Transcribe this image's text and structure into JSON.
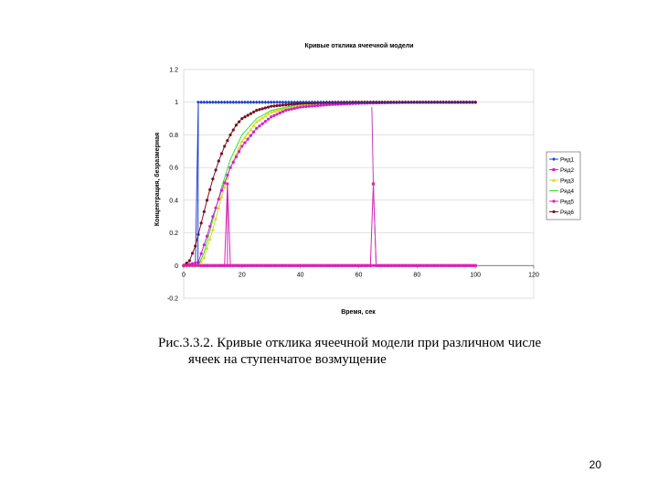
{
  "chart_data": {
    "type": "line",
    "title": "Кривые отклика ячеечной модели",
    "xlabel": "Время, сек",
    "ylabel": "Концентрация, безразмерная",
    "xlim": [
      0,
      120
    ],
    "ylim": [
      -0.2,
      1.2
    ],
    "xticks": [
      "0",
      "20",
      "40",
      "60",
      "80",
      "100",
      "120"
    ],
    "yticks": [
      "-0.2",
      "0",
      "0.2",
      "0.4",
      "0.6",
      "0.8",
      "1",
      "1.2"
    ],
    "grid": "horizontal",
    "legend": "right",
    "series": [
      {
        "name": "Ряд1",
        "color": "#1f3fd0",
        "marker": "diamond",
        "x": [
          0,
          2,
          4,
          5,
          6,
          10,
          20,
          40,
          60,
          80,
          100
        ],
        "y": [
          0,
          0,
          0,
          1,
          1,
          1,
          1,
          1,
          1,
          1,
          1
        ]
      },
      {
        "name": "Ряд2",
        "color": "#e020b0",
        "marker": "square",
        "x": [
          0,
          10,
          20,
          30,
          40,
          50,
          60,
          64,
          65,
          66,
          70,
          80,
          90,
          100
        ],
        "y": [
          0,
          0,
          0,
          0,
          0,
          0,
          0,
          0,
          0.5,
          0,
          0,
          0,
          0,
          0
        ]
      },
      {
        "name": "Ряд3",
        "color": "#d8d820",
        "marker": "triangle",
        "x": [
          0,
          5,
          7,
          10,
          13,
          16,
          20,
          25,
          30,
          40,
          50,
          60,
          80,
          100
        ],
        "y": [
          0,
          0,
          0.05,
          0.22,
          0.42,
          0.6,
          0.76,
          0.88,
          0.94,
          0.985,
          0.995,
          1,
          1,
          1
        ]
      },
      {
        "name": "Ряд4",
        "color": "#30e030",
        "marker": "none",
        "x": [
          0,
          5,
          7,
          10,
          13,
          16,
          20,
          25,
          30,
          40,
          50,
          60,
          80,
          100
        ],
        "y": [
          0,
          0,
          0.08,
          0.28,
          0.48,
          0.65,
          0.8,
          0.9,
          0.95,
          0.988,
          0.997,
          1,
          1,
          1
        ]
      },
      {
        "name": "Ряд5",
        "color": "#d020d0",
        "marker": "circle",
        "x": [
          0,
          5,
          8,
          10,
          13,
          16,
          20,
          25,
          30,
          35,
          40,
          50,
          60,
          70,
          80,
          100
        ],
        "y": [
          0,
          0.02,
          0.18,
          0.3,
          0.46,
          0.6,
          0.73,
          0.84,
          0.91,
          0.95,
          0.97,
          0.985,
          0.993,
          0.997,
          1,
          1
        ]
      },
      {
        "name": "Ряд6",
        "color": "#7a1020",
        "marker": "circle",
        "x": [
          0,
          2,
          4,
          6,
          8,
          10,
          12,
          14,
          16,
          18,
          20,
          25,
          30,
          40,
          50,
          60,
          80,
          100
        ],
        "y": [
          0,
          0.03,
          0.12,
          0.26,
          0.4,
          0.53,
          0.64,
          0.73,
          0.8,
          0.86,
          0.9,
          0.95,
          0.975,
          0.993,
          0.998,
          1,
          1,
          1
        ]
      },
      {
        "name": "",
        "color": "#1f3fd0",
        "marker": "none",
        "legend": false,
        "x": [
          0,
          4.9,
          5,
          100
        ],
        "y": [
          0,
          0,
          1,
          1
        ]
      },
      {
        "name": "",
        "color": "#e020b0",
        "marker": "circle",
        "legend": false,
        "x": [
          0,
          10,
          14,
          15,
          16,
          30,
          50,
          70,
          100
        ],
        "y": [
          0,
          0,
          0,
          0.5,
          0,
          0,
          0,
          0,
          0
        ]
      },
      {
        "name": "",
        "color": "#d020d0",
        "marker": "none",
        "legend": false,
        "x": [
          15,
          15.01
        ],
        "y": [
          0,
          0.5
        ]
      },
      {
        "name": "",
        "color": "#c040c0",
        "marker": "none",
        "legend": false,
        "x": [
          64.5,
          65,
          66
        ],
        "y": [
          0.97,
          0.5,
          0
        ]
      }
    ]
  },
  "figure": {
    "caption_line1": "Рис.3.3.2. Кривые отклика ячеечной модели при различном числе",
    "caption_line2": "ячеек на ступенчатое возмущение"
  },
  "page": {
    "number": "20"
  }
}
